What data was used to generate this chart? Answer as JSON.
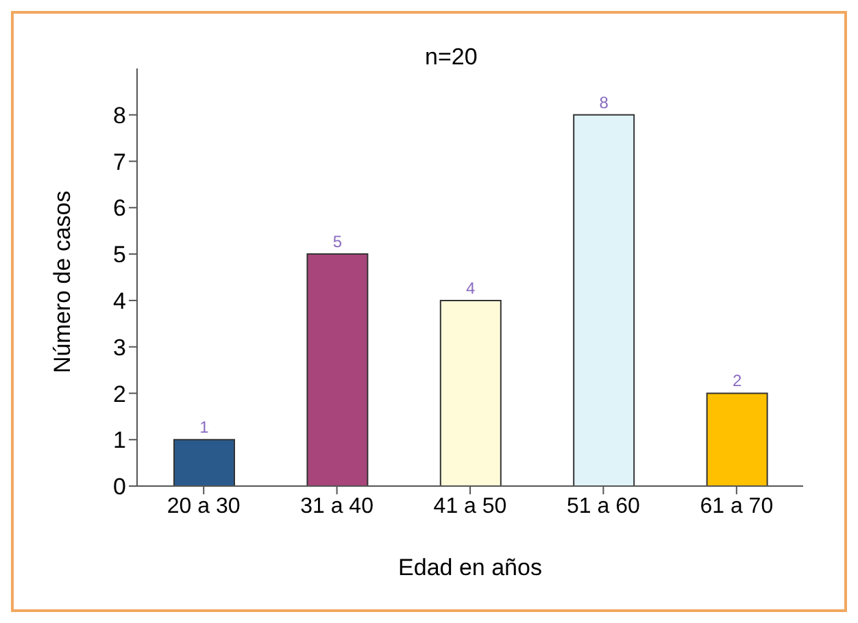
{
  "chart_data": {
    "type": "bar",
    "xlabel": "Edad en años",
    "ylabel": "Número de casos",
    "categories": [
      "20 a 30",
      "31 a 40",
      "41 a 50",
      "51 a 60",
      "61 a 70"
    ],
    "values": [
      1,
      5,
      4,
      8,
      2
    ],
    "colors": [
      "#2a5a8c",
      "#a8457a",
      "#fffbd8",
      "#dff3f8",
      "#ffc000"
    ],
    "ylim": [
      0,
      9
    ],
    "yticks": [
      0,
      1,
      2,
      3,
      4,
      5,
      6,
      7,
      8
    ],
    "data_labels": true,
    "annotations": [
      "n=20"
    ]
  }
}
